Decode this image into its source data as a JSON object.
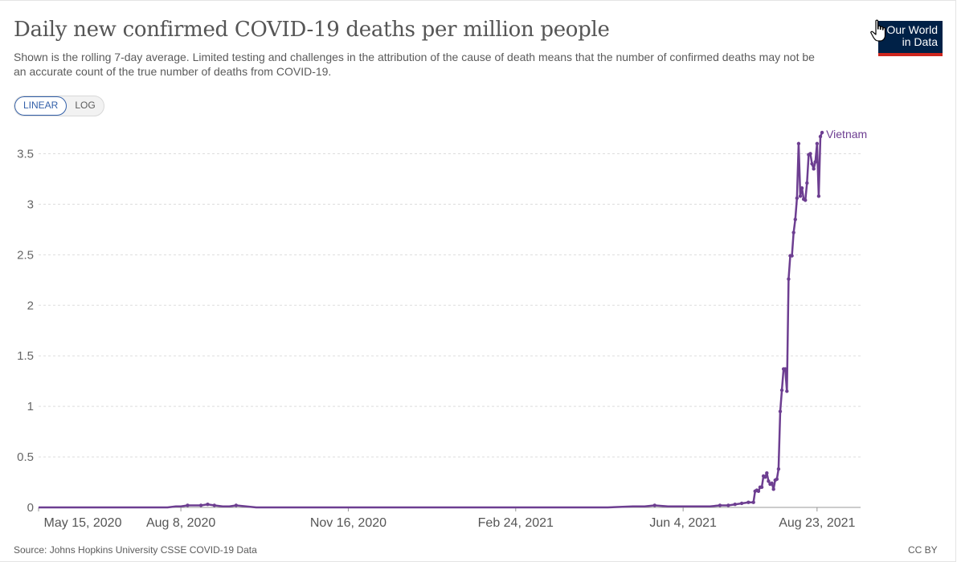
{
  "title": "Daily new confirmed COVID-19 deaths per million people",
  "subtitle": "Shown is the rolling 7-day average. Limited testing and challenges in the attribution of the cause of death means that the number of confirmed deaths may not be an accurate count of the true number of deaths from COVID-19.",
  "logo": {
    "line1": "Our World",
    "line2": "in Data"
  },
  "scale_toggle": {
    "linear": "LINEAR",
    "log": "LOG",
    "selected": "LINEAR"
  },
  "source": "Source: Johns Hopkins University CSSE COVID-19 Data",
  "license": "CC BY",
  "colors": {
    "series": "#6d3e91",
    "grid": "#dddddd",
    "logo_bg": "#002147",
    "logo_bar": "#ce261e",
    "toggle_active": "#3360a9"
  },
  "chart_data": {
    "type": "line",
    "title": "Daily new confirmed COVID-19 deaths per million people",
    "xlabel": "",
    "ylabel": "",
    "x_ticks": [
      "May 15, 2020",
      "Aug 8, 2020",
      "Nov 16, 2020",
      "Feb 24, 2021",
      "Jun 4, 2021",
      "Aug 23, 2021"
    ],
    "y_ticks": [
      "0",
      "0.5",
      "1",
      "1.5",
      "2",
      "2.5",
      "3",
      "3.5"
    ],
    "xlim": [
      "2020-05-15",
      "2021-09-18"
    ],
    "ylim": [
      0,
      3.75
    ],
    "grid": true,
    "series": [
      {
        "name": "Vietnam",
        "points": [
          [
            "2020-05-15",
            0
          ],
          [
            "2020-07-31",
            0
          ],
          [
            "2020-08-05",
            0.01
          ],
          [
            "2020-08-08",
            0.01
          ],
          [
            "2020-08-12",
            0.02
          ],
          [
            "2020-08-20",
            0.02
          ],
          [
            "2020-08-24",
            0.03
          ],
          [
            "2020-08-28",
            0.02
          ],
          [
            "2020-09-02",
            0.01
          ],
          [
            "2020-09-06",
            0.01
          ],
          [
            "2020-09-10",
            0.02
          ],
          [
            "2020-09-16",
            0.01
          ],
          [
            "2020-09-22",
            0
          ],
          [
            "2021-01-01",
            0
          ],
          [
            "2021-04-20",
            0
          ],
          [
            "2021-05-05",
            0.01
          ],
          [
            "2021-05-12",
            0.01
          ],
          [
            "2021-05-18",
            0.02
          ],
          [
            "2021-05-26",
            0.01
          ],
          [
            "2021-06-04",
            0.01
          ],
          [
            "2021-06-12",
            0.01
          ],
          [
            "2021-06-20",
            0.01
          ],
          [
            "2021-06-26",
            0.02
          ],
          [
            "2021-07-01",
            0.02
          ],
          [
            "2021-07-05",
            0.03
          ],
          [
            "2021-07-09",
            0.04
          ],
          [
            "2021-07-13",
            0.05
          ],
          [
            "2021-07-16",
            0.05
          ],
          [
            "2021-07-17",
            0.16
          ],
          [
            "2021-07-18",
            0.17
          ],
          [
            "2021-07-19",
            0.16
          ],
          [
            "2021-07-20",
            0.2
          ],
          [
            "2021-07-21",
            0.2
          ],
          [
            "2021-07-22",
            0.31
          ],
          [
            "2021-07-23",
            0.3
          ],
          [
            "2021-07-24",
            0.34
          ],
          [
            "2021-07-25",
            0.26
          ],
          [
            "2021-07-26",
            0.23
          ],
          [
            "2021-07-27",
            0.24
          ],
          [
            "2021-07-28",
            0.18
          ],
          [
            "2021-07-29",
            0.27
          ],
          [
            "2021-07-30",
            0.28
          ],
          [
            "2021-07-31",
            0.38
          ],
          [
            "2021-08-01",
            0.95
          ],
          [
            "2021-08-02",
            1.16
          ],
          [
            "2021-08-03",
            1.37
          ],
          [
            "2021-08-04",
            1.37
          ],
          [
            "2021-08-05",
            1.15
          ],
          [
            "2021-08-06",
            2.26
          ],
          [
            "2021-08-07",
            2.49
          ],
          [
            "2021-08-08",
            2.49
          ],
          [
            "2021-08-09",
            2.72
          ],
          [
            "2021-08-10",
            2.85
          ],
          [
            "2021-08-11",
            3.06
          ],
          [
            "2021-08-12",
            3.6
          ],
          [
            "2021-08-13",
            3.08
          ],
          [
            "2021-08-14",
            3.16
          ],
          [
            "2021-08-15",
            3.05
          ],
          [
            "2021-08-16",
            3.04
          ],
          [
            "2021-08-17",
            3.21
          ],
          [
            "2021-08-18",
            3.49
          ],
          [
            "2021-08-19",
            3.5
          ],
          [
            "2021-08-20",
            3.4
          ],
          [
            "2021-08-21",
            3.35
          ],
          [
            "2021-08-22",
            3.42
          ],
          [
            "2021-08-23",
            3.6
          ],
          [
            "2021-08-24",
            3.08
          ],
          [
            "2021-08-25",
            3.67
          ],
          [
            "2021-08-26",
            3.71
          ]
        ]
      }
    ]
  }
}
